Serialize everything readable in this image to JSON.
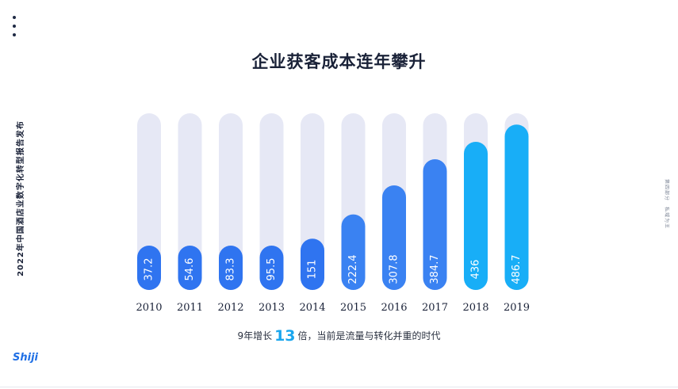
{
  "page": {
    "title": "企业获客成本连年攀升",
    "side_left": "2022年中国酒店业数字化转型报告发布",
    "side_right": "第四部分　私域为王",
    "caption_prefix": "9年增长",
    "caption_number": "13",
    "caption_suffix": "倍，当前是流量与转化并重的时代",
    "logo": "Shiji"
  },
  "colors": {
    "track": "#e6e8f5",
    "bar_dark": "#2f74f0",
    "bar_mid": "#3a82f2",
    "bar_light": "#18aef7"
  },
  "chart_data": {
    "type": "bar",
    "title": "企业获客成本连年攀升",
    "categories": [
      "2010",
      "2011",
      "2012",
      "2013",
      "2014",
      "2015",
      "2016",
      "2017",
      "2018",
      "2019"
    ],
    "values": [
      37.2,
      54.6,
      83.3,
      95.5,
      151,
      222.4,
      307.8,
      384.7,
      436,
      486.7
    ],
    "data_labels": [
      "37.2",
      "54.6",
      "83.3",
      "95.5",
      "151",
      "222.4",
      "307.8",
      "384.7",
      "436",
      "486.7"
    ],
    "ylim": [
      0,
      520
    ],
    "grid": false,
    "legend": "none"
  }
}
